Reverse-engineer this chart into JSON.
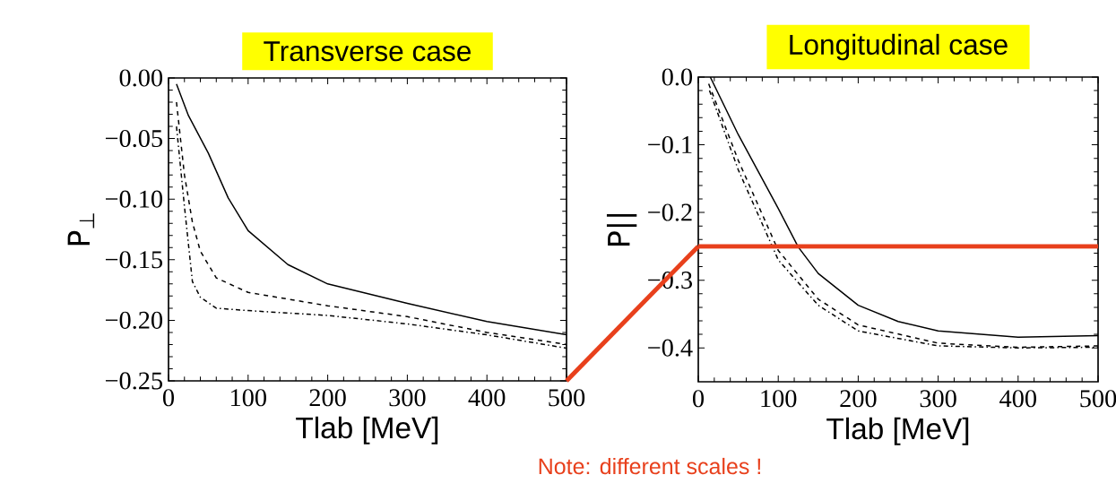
{
  "chart_data": [
    {
      "type": "line",
      "title": "Transverse case",
      "xlabel": "Tlab [MeV]",
      "ylabel": "P$_{⊥}$",
      "xlim": [
        0,
        500
      ],
      "ylim": [
        -0.25,
        0
      ],
      "xticks": [
        0,
        100,
        200,
        300,
        400,
        500
      ],
      "yticks": [
        {
          "value": 0,
          "label": "0.00"
        },
        {
          "value": -0.05,
          "label": "−0.05"
        },
        {
          "value": -0.1,
          "label": "−0.10"
        },
        {
          "value": -0.15,
          "label": "−0.15"
        },
        {
          "value": -0.2,
          "label": "−0.20"
        },
        {
          "value": -0.25,
          "label": "−0.25"
        }
      ],
      "grid": false,
      "series": [
        {
          "color": "#000000",
          "line_style": "solid",
          "x": [
            10,
            25,
            50,
            75,
            100,
            150,
            200,
            300,
            400,
            500
          ],
          "values": [
            -0.005,
            -0.031,
            -0.062,
            -0.099,
            -0.126,
            -0.154,
            -0.17,
            -0.186,
            -0.201,
            -0.212
          ]
        },
        {
          "color": "#000000",
          "line_style": "dashed",
          "x": [
            10,
            20,
            30,
            40,
            60,
            100,
            200,
            300,
            400,
            500
          ],
          "values": [
            -0.02,
            -0.08,
            -0.119,
            -0.143,
            -0.165,
            -0.177,
            -0.188,
            -0.197,
            -0.21,
            -0.22
          ]
        },
        {
          "color": "#000000",
          "line_style": "dashdot",
          "x": [
            10,
            20,
            30,
            40,
            60,
            100,
            200,
            300,
            400,
            500
          ],
          "values": [
            -0.04,
            -0.106,
            -0.168,
            -0.181,
            -0.19,
            -0.192,
            -0.196,
            -0.203,
            -0.212,
            -0.223
          ]
        }
      ]
    },
    {
      "type": "line",
      "title": "Longitudinal case",
      "xlabel": "Tlab [MeV]",
      "ylabel": "P||",
      "annotations": [
        "Note: different scales !"
      ],
      "xlim": [
        0,
        500
      ],
      "ylim": [
        -0.45,
        0
      ],
      "xticks": [
        0,
        100,
        200,
        300,
        400,
        500
      ],
      "yticks": [
        {
          "value": 0,
          "label": "0.0"
        },
        {
          "value": -0.1,
          "label": "−0.1"
        },
        {
          "value": -0.2,
          "label": "−0.2"
        },
        {
          "value": -0.3,
          "label": "−0.3"
        },
        {
          "value": -0.4,
          "label": "−0.4"
        }
      ],
      "grid": false,
      "ref_lines": [
        {
          "axis": "y",
          "value": -0.25,
          "color": "#e8401c"
        }
      ],
      "series": [
        {
          "color": "#000000",
          "line_style": "solid",
          "x": [
            15,
            50,
            100,
            125,
            150,
            200,
            250,
            300,
            400,
            500
          ],
          "values": [
            0,
            -0.085,
            -0.194,
            -0.251,
            -0.29,
            -0.337,
            -0.361,
            -0.375,
            -0.384,
            -0.382
          ]
        },
        {
          "color": "#000000",
          "line_style": "dashed",
          "x": [
            13,
            50,
            100,
            150,
            200,
            300,
            400,
            500
          ],
          "values": [
            -0.01,
            -0.123,
            -0.256,
            -0.328,
            -0.366,
            -0.393,
            -0.399,
            -0.397
          ]
        },
        {
          "color": "#000000",
          "line_style": "dashdot",
          "x": [
            14,
            50,
            100,
            150,
            200,
            300,
            400,
            500
          ],
          "values": [
            -0.02,
            -0.137,
            -0.27,
            -0.337,
            -0.375,
            -0.397,
            -0.4,
            -0.399
          ]
        }
      ]
    }
  ]
}
